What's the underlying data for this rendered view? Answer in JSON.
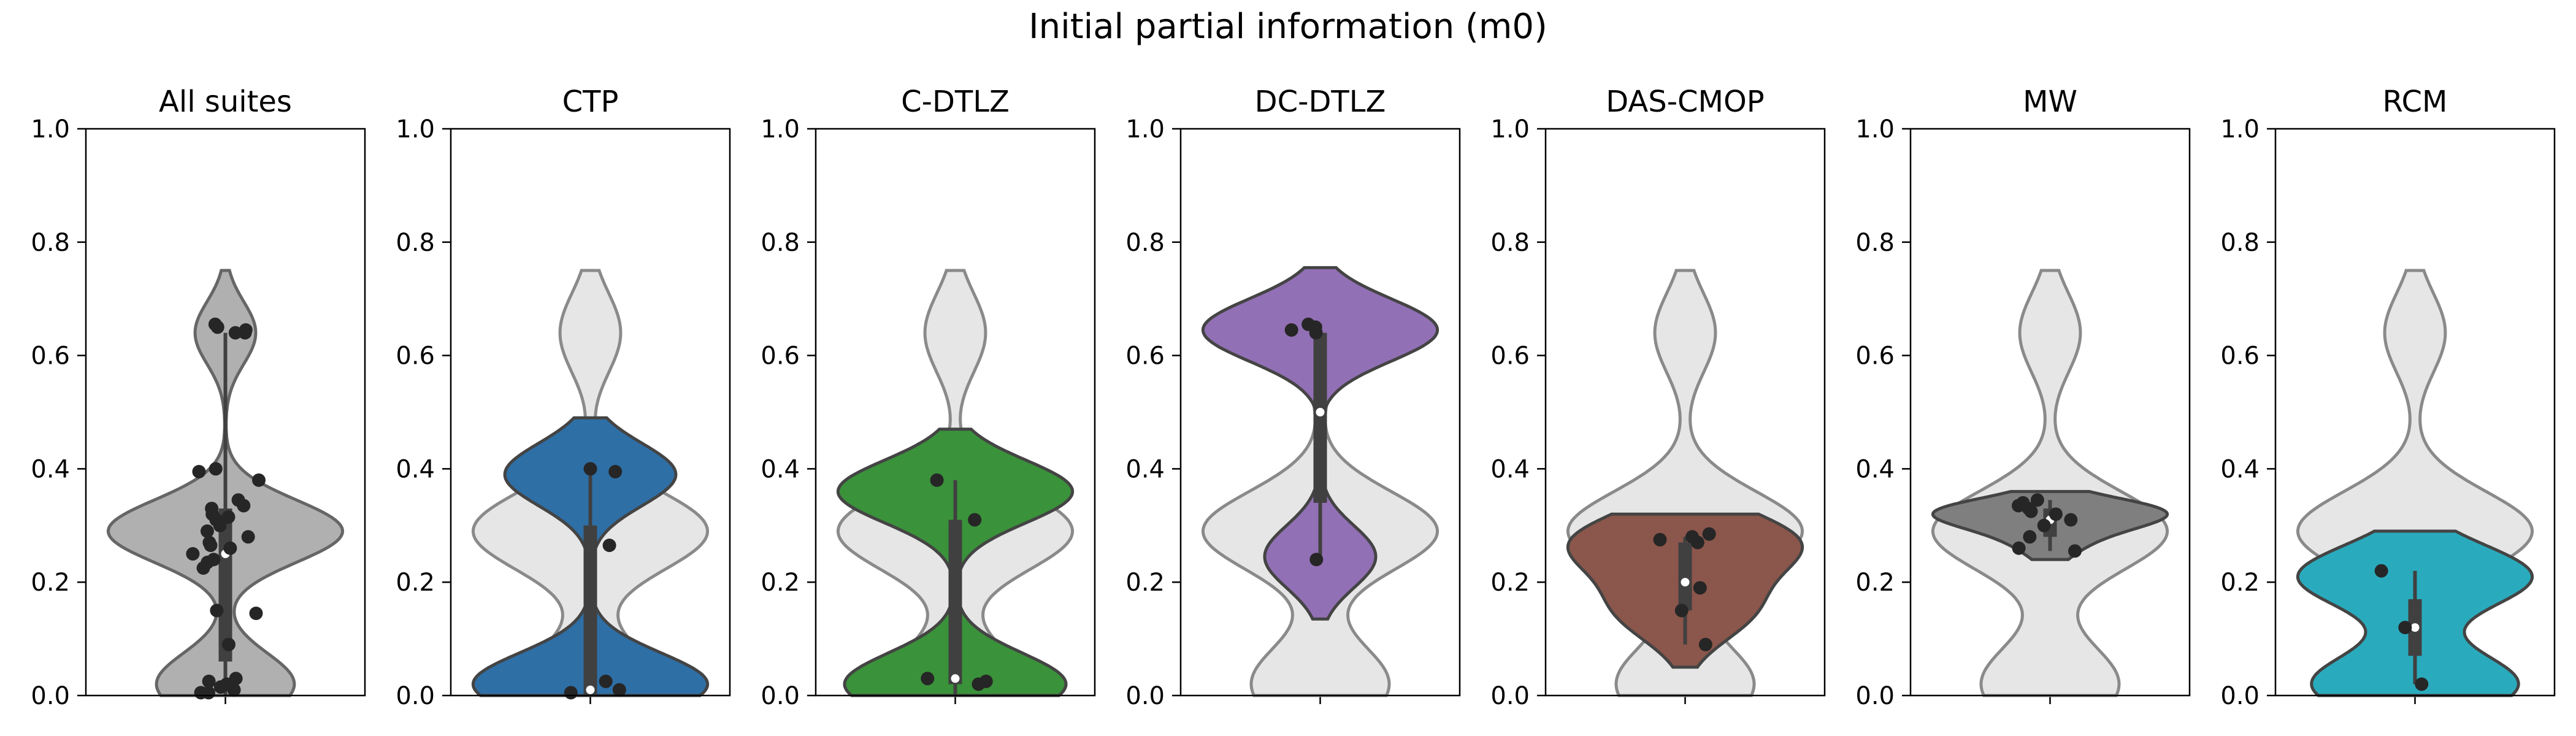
{
  "chart_data": {
    "type": "violin",
    "title": "Initial partial information (m0)",
    "ylim": [
      0,
      1
    ],
    "yticks": [
      "0.0",
      "0.2",
      "0.4",
      "0.6",
      "0.8",
      "1.0"
    ],
    "reference_distribution": {
      "label": "All suites",
      "modes": [
        {
          "center": 0.02,
          "weight": 0.5
        },
        {
          "center": 0.29,
          "weight": 0.85
        },
        {
          "center": 0.64,
          "weight": 0.22
        }
      ],
      "range": [
        0.0,
        0.75
      ]
    },
    "panels": [
      {
        "title": "All suites",
        "color": "#b0b0b0",
        "edge": "#666666",
        "show_background": false,
        "range": [
          0.0,
          0.75
        ],
        "modes": [
          {
            "center": 0.02,
            "weight": 0.5
          },
          {
            "center": 0.29,
            "weight": 0.85
          },
          {
            "center": 0.64,
            "weight": 0.22
          }
        ],
        "box": {
          "q1": 0.06,
          "median": 0.25,
          "q3": 0.33,
          "whisker_low": 0.0,
          "whisker_high": 0.64
        },
        "points": [
          0.65,
          0.655,
          0.64,
          0.645,
          0.64,
          0.4,
          0.395,
          0.38,
          0.345,
          0.335,
          0.33,
          0.32,
          0.315,
          0.31,
          0.3,
          0.29,
          0.28,
          0.27,
          0.265,
          0.26,
          0.25,
          0.24,
          0.235,
          0.225,
          0.15,
          0.145,
          0.09,
          0.03,
          0.025,
          0.02,
          0.015,
          0.01,
          0.005,
          0.005
        ]
      },
      {
        "title": "CTP",
        "color": "#2e6fa6",
        "edge": "#444444",
        "show_background": true,
        "range": [
          0.0,
          0.49
        ],
        "modes": [
          {
            "center": 0.02,
            "weight": 0.85
          },
          {
            "center": 0.39,
            "weight": 0.62
          }
        ],
        "box": {
          "q1": 0.0,
          "median": 0.01,
          "q3": 0.3,
          "whisker_low": 0.0,
          "whisker_high": 0.4
        },
        "points": [
          0.4,
          0.395,
          0.265,
          0.025,
          0.01,
          0.005
        ]
      },
      {
        "title": "C-DTLZ",
        "color": "#3a923a",
        "edge": "#444444",
        "show_background": true,
        "range": [
          0.0,
          0.47
        ],
        "modes": [
          {
            "center": 0.02,
            "weight": 0.85
          },
          {
            "center": 0.36,
            "weight": 0.9
          }
        ],
        "box": {
          "q1": 0.02,
          "median": 0.03,
          "q3": 0.31,
          "whisker_low": 0.0,
          "whisker_high": 0.38
        },
        "points": [
          0.38,
          0.31,
          0.03,
          0.025,
          0.02
        ]
      },
      {
        "title": "DC-DTLZ",
        "color": "#9270b5",
        "edge": "#444444",
        "show_background": true,
        "range": [
          0.135,
          0.755
        ],
        "modes": [
          {
            "center": 0.645,
            "weight": 0.95
          },
          {
            "center": 0.245,
            "weight": 0.45
          }
        ],
        "box": {
          "q1": 0.34,
          "median": 0.5,
          "q3": 0.64,
          "whisker_low": 0.24,
          "whisker_high": 0.655
        },
        "points": [
          0.655,
          0.65,
          0.645,
          0.64,
          0.24
        ]
      },
      {
        "title": "DAS-CMOP",
        "color": "#8b564b",
        "edge": "#444444",
        "show_background": true,
        "range": [
          0.05,
          0.32
        ],
        "modes": [
          {
            "center": 0.27,
            "weight": 0.95
          },
          {
            "center": 0.15,
            "weight": 0.55
          }
        ],
        "box": {
          "q1": 0.15,
          "median": 0.2,
          "q3": 0.27,
          "whisker_low": 0.09,
          "whisker_high": 0.28
        },
        "points": [
          0.285,
          0.28,
          0.275,
          0.27,
          0.19,
          0.15,
          0.09
        ]
      },
      {
        "title": "MW",
        "color": "#7f7f7f",
        "edge": "#444444",
        "show_background": true,
        "range": [
          0.24,
          0.36
        ],
        "modes": [
          {
            "center": 0.325,
            "weight": 0.95
          },
          {
            "center": 0.29,
            "weight": 0.3
          },
          {
            "center": 0.255,
            "weight": 0.15
          }
        ],
        "box": {
          "q1": 0.28,
          "median": 0.31,
          "q3": 0.33,
          "whisker_low": 0.255,
          "whisker_high": 0.345
        },
        "points": [
          0.345,
          0.34,
          0.335,
          0.33,
          0.325,
          0.32,
          0.31,
          0.3,
          0.28,
          0.26,
          0.255
        ]
      },
      {
        "title": "RCM",
        "color": "#2aabbd",
        "edge": "#444444",
        "show_background": true,
        "range": [
          0.0,
          0.29
        ],
        "modes": [
          {
            "center": 0.02,
            "weight": 0.75
          },
          {
            "center": 0.21,
            "weight": 0.85
          }
        ],
        "box": {
          "q1": 0.07,
          "median": 0.12,
          "q3": 0.17,
          "whisker_low": 0.02,
          "whisker_high": 0.22
        },
        "points": [
          0.22,
          0.12,
          0.02
        ]
      }
    ]
  }
}
